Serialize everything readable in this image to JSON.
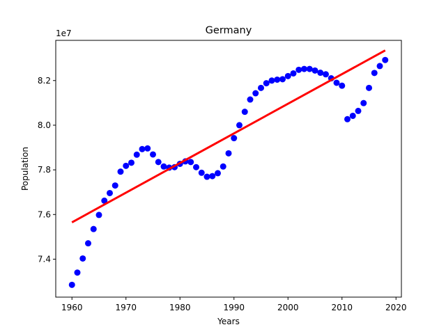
{
  "chart_data": {
    "type": "scatter",
    "title": "Germany",
    "xlabel": "Years",
    "ylabel": "Population",
    "y_offset_label": "1e7",
    "xlim": [
      1957,
      2021
    ],
    "ylim": [
      7.23,
      8.38
    ],
    "xticks": [
      1960,
      1970,
      1980,
      1990,
      2000,
      2010,
      2020
    ],
    "yticks": [
      7.4,
      7.6,
      7.8,
      8.0,
      8.2
    ],
    "grid": false,
    "series": [
      {
        "kind": "points",
        "color": "#0000ff",
        "x": [
          1960,
          1961,
          1962,
          1963,
          1964,
          1965,
          1966,
          1967,
          1968,
          1969,
          1970,
          1971,
          1972,
          1973,
          1974,
          1975,
          1976,
          1977,
          1978,
          1979,
          1980,
          1981,
          1982,
          1983,
          1984,
          1985,
          1986,
          1987,
          1988,
          1989,
          1990,
          1991,
          1992,
          1993,
          1994,
          1995,
          1996,
          1997,
          1998,
          1999,
          2000,
          2001,
          2002,
          2003,
          2004,
          2005,
          2006,
          2007,
          2008,
          2009,
          2010,
          2011,
          2012,
          2013,
          2014,
          2015,
          2016,
          2017,
          2018
        ],
        "y": [
          7.285,
          7.34,
          7.403,
          7.471,
          7.535,
          7.598,
          7.662,
          7.696,
          7.73,
          7.792,
          7.818,
          7.832,
          7.868,
          7.893,
          7.896,
          7.869,
          7.835,
          7.815,
          7.81,
          7.812,
          7.827,
          7.838,
          7.835,
          7.812,
          7.787,
          7.769,
          7.772,
          7.785,
          7.815,
          7.874,
          7.942,
          8.0,
          8.06,
          8.115,
          8.143,
          8.167,
          8.188,
          8.2,
          8.204,
          8.206,
          8.22,
          8.232,
          8.248,
          8.252,
          8.252,
          8.245,
          8.235,
          8.228,
          8.21,
          8.19,
          8.177,
          8.027,
          8.042,
          8.064,
          8.099,
          8.167,
          8.234,
          8.265,
          8.292
        ]
      },
      {
        "kind": "fit-line",
        "color": "#ff0000",
        "x": [
          1960,
          2018
        ],
        "y": [
          7.565,
          8.335
        ]
      }
    ]
  }
}
